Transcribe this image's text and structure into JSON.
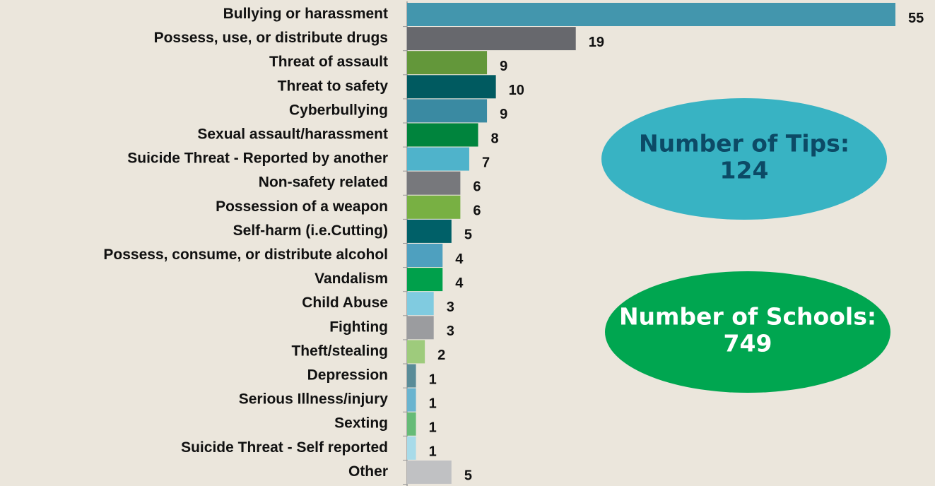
{
  "chart_data": {
    "type": "barh",
    "categories": [
      "Bullying or harassment",
      "Possess, use, or distribute drugs",
      "Threat of assault",
      "Threat to safety",
      "Cyberbullying",
      "Sexual assault/harassment",
      "Suicide Threat - Reported by another",
      "Non-safety related",
      "Possession of a weapon",
      "Self-harm (i.e.Cutting)",
      "Possess, consume, or distribute alcohol",
      "Vandalism",
      "Child Abuse",
      "Fighting",
      "Theft/stealing",
      "Depression",
      "Serious Illness/injury",
      "Sexting",
      "Suicide Threat - Self reported",
      "Other"
    ],
    "values": [
      55,
      19,
      9,
      10,
      9,
      8,
      7,
      6,
      6,
      5,
      4,
      4,
      3,
      3,
      2,
      1,
      1,
      1,
      1,
      5
    ],
    "colors": [
      "#4396ad",
      "#67686d",
      "#63973a",
      "#005a60",
      "#3a8aa2",
      "#00843d",
      "#4fb3cb",
      "#77787c",
      "#78b043",
      "#006068",
      "#4ea0bf",
      "#00a04b",
      "#80cbe0",
      "#9b9c9f",
      "#9ecb7c",
      "#5a8c98",
      "#6ab4cf",
      "#66bb77",
      "#a8dbe9",
      "#c0c1c3"
    ],
    "xlim": [
      0,
      55
    ],
    "annotations": [
      {
        "label": "Number of Tips:",
        "value": 124,
        "color": "#38b3c3",
        "text_color": "#0c4a66"
      },
      {
        "label": "Number of Schools:",
        "value": 749,
        "color": "#00a650",
        "text_color": "#ffffff"
      }
    ]
  }
}
